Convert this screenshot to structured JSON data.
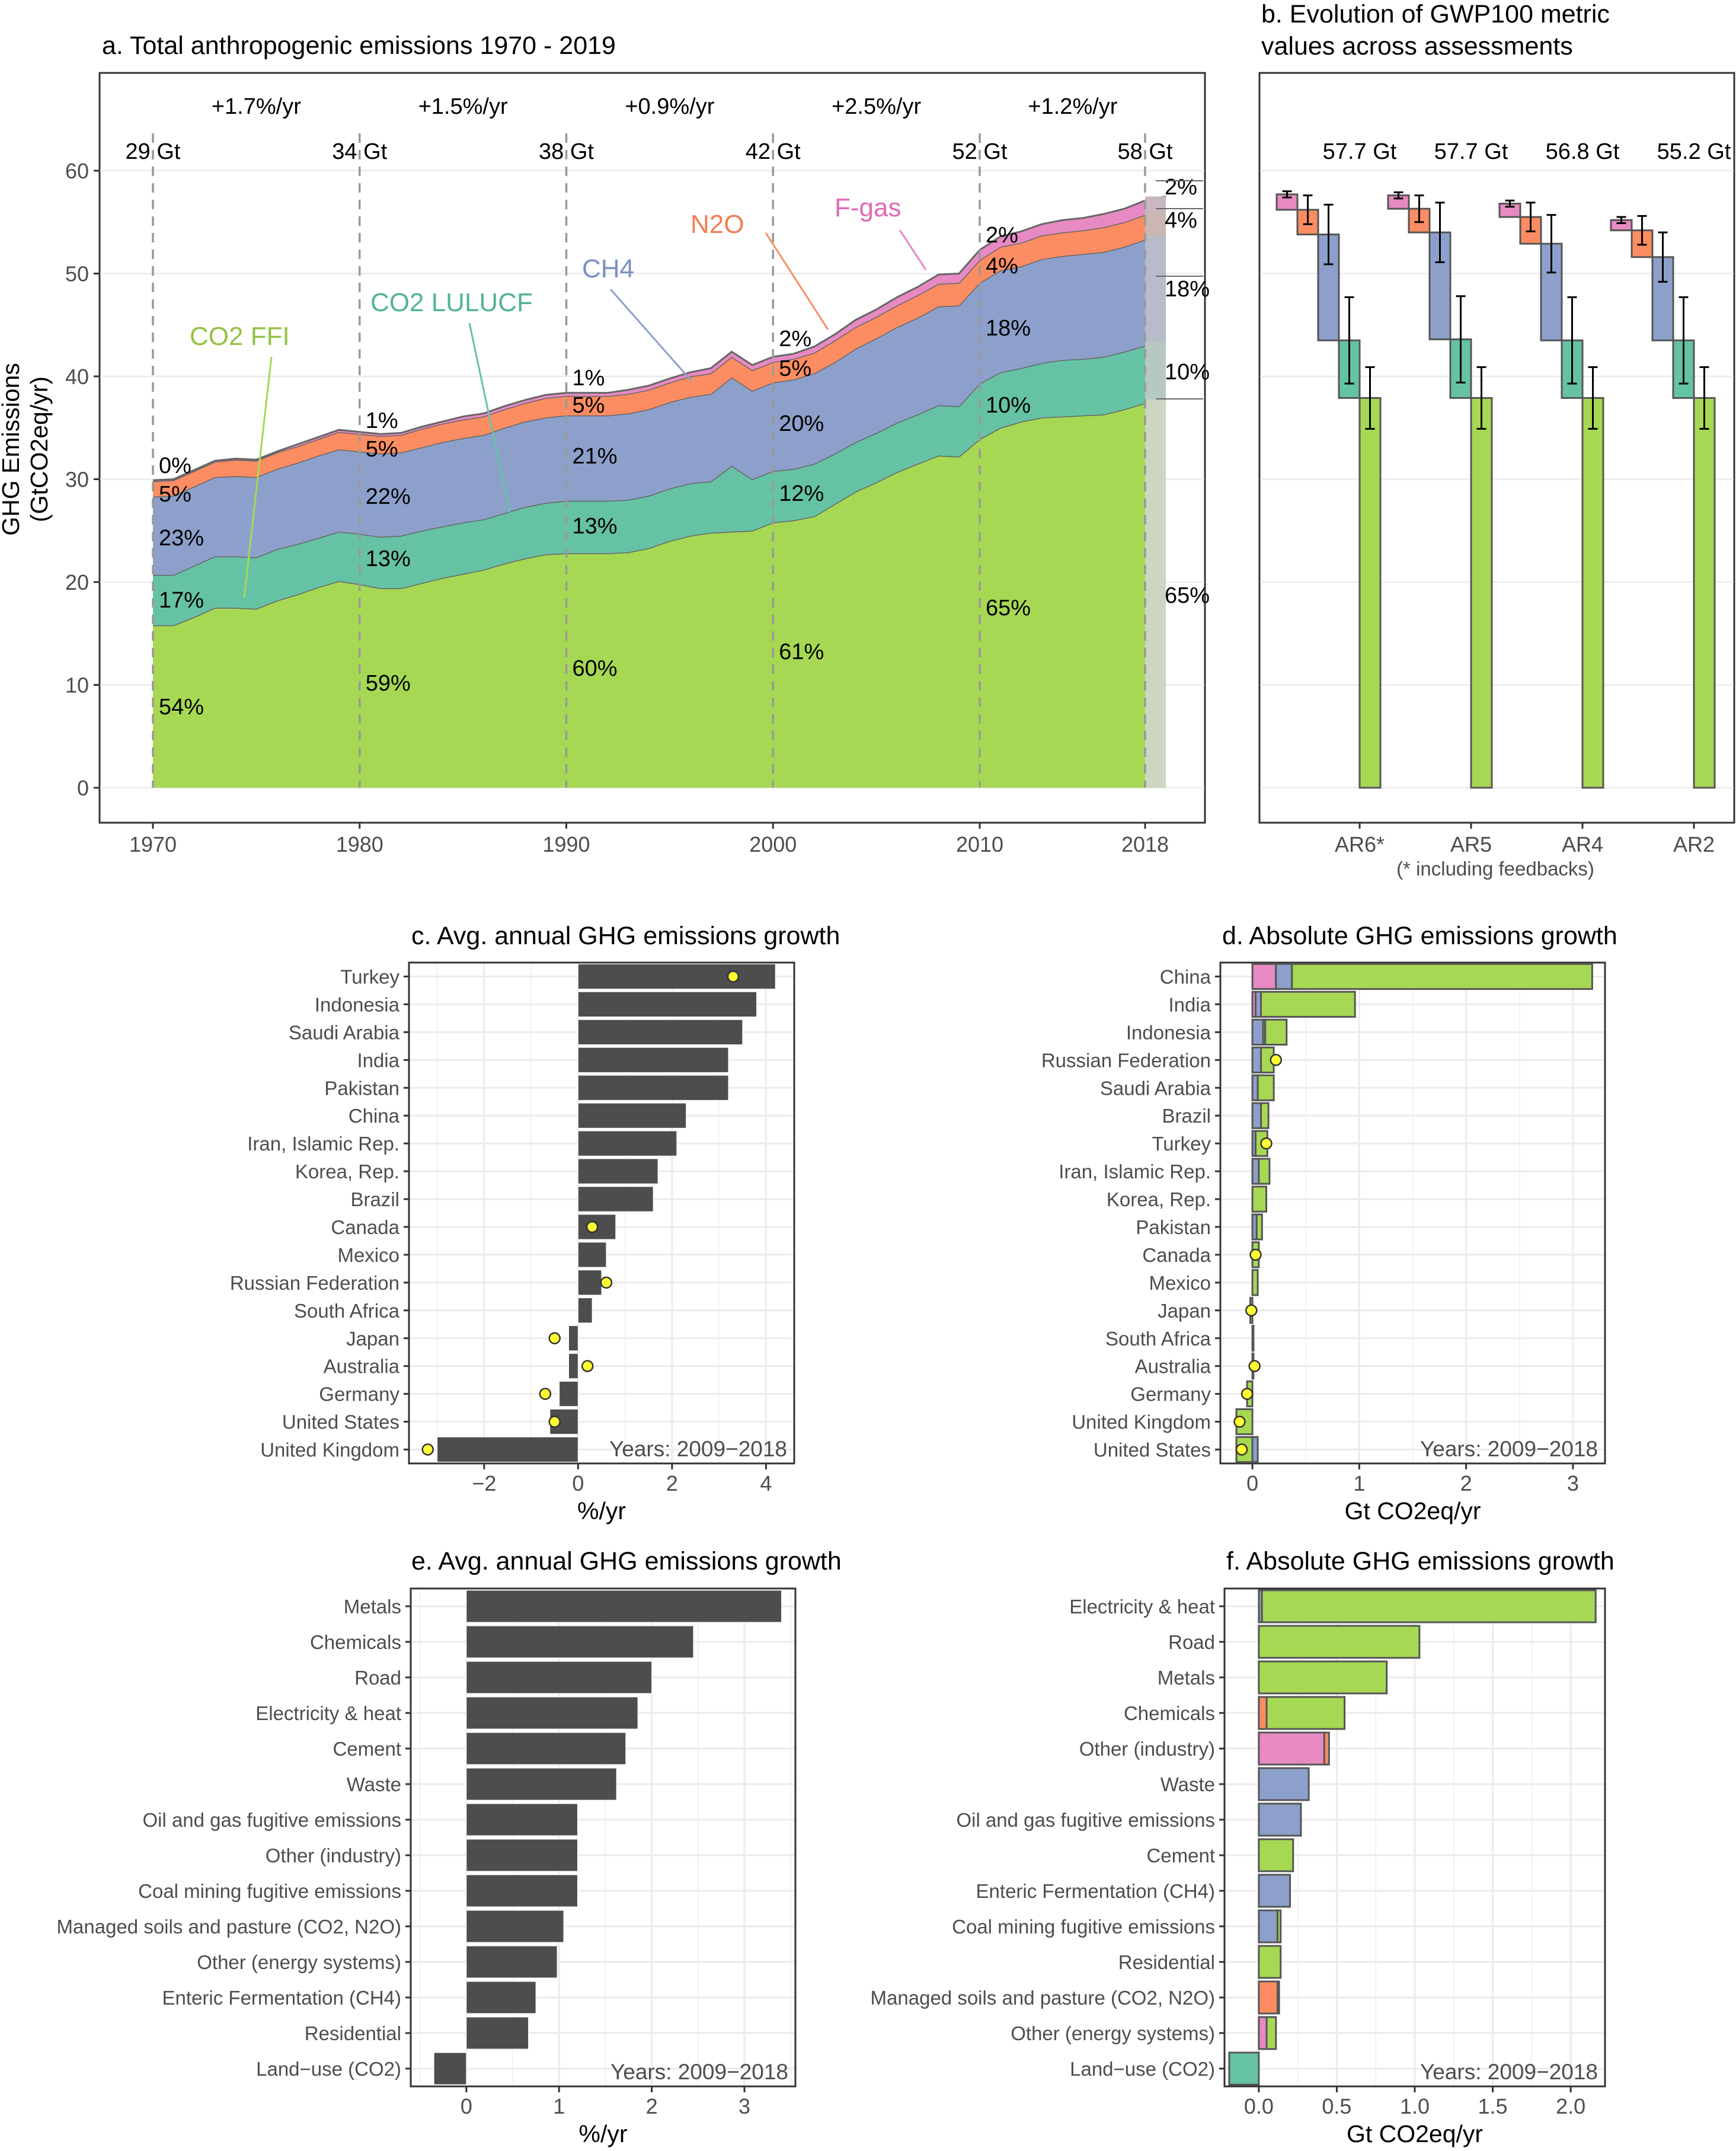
{
  "colors": {
    "co2_ffi": "#a6d854",
    "co2_lulucf": "#66c2a5",
    "ch4": "#8da0cb",
    "n2o": "#fc8d62",
    "fgas": "#e78ac3",
    "bar_dark": "#4d4d4d",
    "dot": "#ffff33",
    "grid": "#ebebeb",
    "dash": "#999999"
  },
  "chart_data": [
    {
      "id": "a",
      "type": "area",
      "title": "a. Total anthropogenic emissions 1970 - 2019",
      "ylabel_line1": "GHG Emissions",
      "ylabel_line2": "(GtCO2eq/yr)",
      "xlim": [
        1970,
        2019
      ],
      "ylim": [
        0,
        60
      ],
      "x_ticks": [
        "1970",
        "1980",
        "1990",
        "2000",
        "2010",
        "2018"
      ],
      "y_ticks": [
        "0",
        "10",
        "20",
        "30",
        "40",
        "50",
        "60"
      ],
      "series": [
        {
          "name": "CO2 FFI",
          "color_key": "co2_ffi",
          "values": [
            15.8,
            15.8,
            16.6,
            17.5,
            17.5,
            17.4,
            18.2,
            18.8,
            19.5,
            20.1,
            19.8,
            19.4,
            19.4,
            19.9,
            20.4,
            20.8,
            21.2,
            21.8,
            22.3,
            22.7,
            22.8,
            22.8,
            22.8,
            22.9,
            23.3,
            24.0,
            24.5,
            24.8,
            24.9,
            25.0,
            25.8,
            26.0,
            26.4,
            27.6,
            28.8,
            29.7,
            30.7,
            31.5,
            32.3,
            32.2,
            33.9,
            35.0,
            35.6,
            36.0,
            36.1,
            36.2,
            36.3,
            36.8,
            37.4,
            37.8
          ]
        },
        {
          "name": "CO2 LULUCF",
          "color_key": "co2_lulucf",
          "values": [
            4.9,
            4.9,
            5.0,
            5.0,
            5.0,
            5.0,
            5.0,
            4.9,
            4.8,
            4.8,
            4.9,
            5.0,
            5.1,
            5.1,
            5.0,
            5.0,
            4.9,
            4.9,
            5.0,
            5.0,
            5.1,
            5.1,
            5.1,
            5.1,
            5.1,
            5.1,
            5.1,
            5.0,
            6.4,
            5.0,
            5.0,
            5.0,
            5.1,
            4.9,
            4.8,
            4.8,
            4.8,
            4.8,
            4.9,
            4.9,
            5.4,
            5.4,
            5.2,
            5.3,
            5.5,
            5.5,
            5.6,
            5.6,
            5.6,
            5.6
          ]
        },
        {
          "name": "CH4",
          "color_key": "ch4",
          "values": [
            7.6,
            7.7,
            7.7,
            7.7,
            7.8,
            7.8,
            7.8,
            7.9,
            8.0,
            8.0,
            8.0,
            8.1,
            8.1,
            8.1,
            8.2,
            8.2,
            8.2,
            8.3,
            8.3,
            8.3,
            8.3,
            8.3,
            8.3,
            8.4,
            8.4,
            8.4,
            8.4,
            8.5,
            8.6,
            8.6,
            8.6,
            8.7,
            8.8,
            8.9,
            9.1,
            9.2,
            9.3,
            9.4,
            9.6,
            9.8,
            9.8,
            9.9,
            9.9,
            10.1,
            10.1,
            10.2,
            10.2,
            10.2,
            10.3,
            10.3
          ]
        },
        {
          "name": "N2O",
          "color_key": "n2o",
          "values": [
            1.5,
            1.5,
            1.5,
            1.5,
            1.6,
            1.6,
            1.6,
            1.6,
            1.6,
            1.7,
            1.7,
            1.7,
            1.7,
            1.8,
            1.8,
            1.8,
            1.8,
            1.8,
            1.8,
            1.9,
            1.9,
            1.9,
            1.9,
            1.9,
            1.9,
            1.9,
            2.0,
            2.0,
            2.0,
            2.0,
            2.0,
            2.0,
            2.0,
            2.1,
            2.1,
            2.1,
            2.1,
            2.2,
            2.2,
            2.2,
            2.2,
            2.3,
            2.3,
            2.3,
            2.3,
            2.3,
            2.4,
            2.4,
            2.4,
            2.4
          ]
        },
        {
          "name": "F-gas",
          "color_key": "fgas",
          "values": [
            0.1,
            0.1,
            0.1,
            0.1,
            0.1,
            0.1,
            0.1,
            0.2,
            0.2,
            0.2,
            0.2,
            0.2,
            0.2,
            0.2,
            0.2,
            0.3,
            0.3,
            0.3,
            0.3,
            0.3,
            0.3,
            0.3,
            0.3,
            0.4,
            0.4,
            0.4,
            0.4,
            0.5,
            0.5,
            0.5,
            0.5,
            0.5,
            0.6,
            0.6,
            0.7,
            0.7,
            0.8,
            0.8,
            0.9,
            0.9,
            1.0,
            1.0,
            1.1,
            1.1,
            1.2,
            1.2,
            1.3,
            1.3,
            1.4,
            1.4
          ]
        }
      ],
      "growth_rates": [
        "+1.7%/yr",
        "+1.5%/yr",
        "+0.9%/yr",
        "+2.5%/yr",
        "+1.2%/yr"
      ],
      "decade_totals": [
        "29 Gt",
        "34 Gt",
        "38 Gt",
        "42 Gt",
        "52 Gt",
        "58 Gt"
      ],
      "decade_shares": [
        {
          "fgas": "0%",
          "n2o": "5%",
          "ch4": "23%",
          "lulucf": "17%",
          "ffi": "54%"
        },
        {
          "fgas": "1%",
          "n2o": "5%",
          "ch4": "22%",
          "lulucf": "13%",
          "ffi": "59%"
        },
        {
          "fgas": "1%",
          "n2o": "5%",
          "ch4": "21%",
          "lulucf": "13%",
          "ffi": "60%"
        },
        {
          "fgas": "2%",
          "n2o": "5%",
          "ch4": "20%",
          "lulucf": "12%",
          "ffi": "61%"
        },
        {
          "fgas": "2%",
          "n2o": "4%",
          "ch4": "18%",
          "lulucf": "10%",
          "ffi": "65%"
        }
      ],
      "end_shares": {
        "fgas": "2%",
        "n2o": "4%",
        "ch4": "18%",
        "lulucf": "10%",
        "ffi": "65%"
      },
      "series_labels": {
        "ffi": "CO2 FFI",
        "lulucf": "CO2 LULUCF",
        "ch4": "CH4",
        "n2o": "N2O",
        "fgas": "F-gas"
      }
    },
    {
      "id": "b",
      "type": "bar",
      "title_line1": "b. Evolution of GWP100 metric",
      "title_line2": "values across assessments",
      "note": "(* including feedbacks)",
      "ylim": [
        0,
        60
      ],
      "groups": [
        {
          "label": "AR6*",
          "total": "57.7 Gt",
          "fgas": 1.5,
          "n2o": 2.4,
          "ch4": 10.3,
          "lulucf": 5.6,
          "ffi": 37.9,
          "err_fgas": 0.3,
          "err_n2o": 1.4,
          "err_ch4": 2.9,
          "err_lulucf": 4.2,
          "err_ffi": 3.0
        },
        {
          "label": "AR5",
          "total": "57.7 Gt",
          "fgas": 1.3,
          "n2o": 2.3,
          "ch4": 10.4,
          "lulucf": 5.7,
          "ffi": 37.9,
          "err_fgas": 0.3,
          "err_n2o": 1.3,
          "err_ch4": 2.9,
          "err_lulucf": 4.2,
          "err_ffi": 3.0
        },
        {
          "label": "AR4",
          "total": "56.8 Gt",
          "fgas": 1.3,
          "n2o": 2.6,
          "ch4": 9.4,
          "lulucf": 5.6,
          "ffi": 37.9,
          "err_fgas": 0.3,
          "err_n2o": 1.4,
          "err_ch4": 2.8,
          "err_lulucf": 4.2,
          "err_ffi": 3.0
        },
        {
          "label": "AR2",
          "total": "55.2 Gt",
          "fgas": 1.0,
          "n2o": 2.6,
          "ch4": 8.1,
          "lulucf": 5.6,
          "ffi": 37.9,
          "err_fgas": 0.3,
          "err_n2o": 1.4,
          "err_ch4": 2.4,
          "err_lulucf": 4.2,
          "err_ffi": 3.0
        }
      ]
    },
    {
      "id": "c",
      "type": "bar",
      "title": "c. Avg. annual GHG emissions growth",
      "xlabel": "%/yr",
      "xlim": [
        -3.6,
        4.6
      ],
      "x_ticks": [
        -2,
        0,
        2,
        4
      ],
      "x_tick_labels": [
        "−2",
        "0",
        "2",
        "4"
      ],
      "note": "Years: 2009−2018",
      "categories": [
        "Turkey",
        "Indonesia",
        "Saudi Arabia",
        "India",
        "Pakistan",
        "China",
        "Iran, Islamic Rep.",
        "Korea, Rep.",
        "Brazil",
        "Canada",
        "Mexico",
        "Russian Federation",
        "South Africa",
        "Japan",
        "Australia",
        "Germany",
        "United States",
        "United Kingdom"
      ],
      "values": [
        4.2,
        3.8,
        3.5,
        3.2,
        3.2,
        2.3,
        2.1,
        1.7,
        1.6,
        0.8,
        0.6,
        0.5,
        0.3,
        -0.2,
        -0.2,
        -0.4,
        -0.6,
        -3.0
      ],
      "dots": [
        3.3,
        null,
        null,
        null,
        null,
        null,
        null,
        null,
        null,
        0.3,
        null,
        0.6,
        null,
        -0.5,
        0.2,
        -0.7,
        -0.5,
        -3.2
      ]
    },
    {
      "id": "d",
      "type": "bar",
      "title": "d. Absolute GHG emissions growth",
      "xlabel": "Gt CO2eq/yr",
      "xlim": [
        -0.3,
        3.3
      ],
      "x_ticks": [
        0,
        1,
        2,
        3
      ],
      "x_tick_labels": [
        "0",
        "1",
        "2",
        "3"
      ],
      "note": "Years: 2009−2018",
      "categories": [
        "China",
        "India",
        "Indonesia",
        "Russian Federation",
        "Saudi Arabia",
        "Brazil",
        "Turkey",
        "Iran, Islamic Rep.",
        "Korea, Rep.",
        "Pakistan",
        "Canada",
        "Mexico",
        "Japan",
        "South Africa",
        "Australia",
        "Germany",
        "United Kingdom",
        "United States"
      ],
      "stacks": [
        [
          [
            "fgas",
            0.22
          ],
          [
            "ch4",
            0.15
          ],
          [
            "ffi",
            2.81
          ]
        ],
        [
          [
            "fgas",
            0.03
          ],
          [
            "ch4",
            0.05
          ],
          [
            "ffi",
            0.88
          ]
        ],
        [
          [
            "ch4",
            0.1
          ],
          [
            "lulucf",
            0.02
          ],
          [
            "ffi",
            0.2
          ]
        ],
        [
          [
            "ch4",
            0.08
          ],
          [
            "ffi",
            0.12
          ]
        ],
        [
          [
            "ch4",
            0.05
          ],
          [
            "ffi",
            0.15
          ]
        ],
        [
          [
            "ch4",
            0.08
          ],
          [
            "ffi",
            0.07
          ]
        ],
        [
          [
            "ch4",
            0.03
          ],
          [
            "ffi",
            0.11
          ]
        ],
        [
          [
            "ch4",
            0.06
          ],
          [
            "ffi",
            0.1
          ]
        ],
        [
          [
            "ffi",
            0.13
          ]
        ],
        [
          [
            "ch4",
            0.04
          ],
          [
            "ffi",
            0.05
          ]
        ],
        [
          [
            "ffi",
            0.06
          ]
        ],
        [
          [
            "ffi",
            0.05
          ]
        ],
        [
          [
            "ffi",
            -0.02
          ]
        ],
        [
          [
            "ffi",
            0.01
          ]
        ],
        [
          [
            "ffi",
            0.01
          ]
        ],
        [
          [
            "ffi",
            -0.05
          ]
        ],
        [
          [
            "ffi",
            -0.15
          ]
        ],
        [
          [
            "ffi",
            -0.15
          ],
          [
            "ch4",
            0.05
          ]
        ]
      ],
      "dots": [
        null,
        null,
        null,
        0.22,
        null,
        null,
        0.13,
        null,
        null,
        null,
        0.03,
        null,
        -0.01,
        null,
        0.02,
        -0.05,
        -0.12,
        -0.1
      ]
    },
    {
      "id": "e",
      "type": "bar",
      "title": "e. Avg. annual GHG emissions growth",
      "xlabel": "%/yr",
      "xlim": [
        -0.6,
        3.55
      ],
      "x_ticks": [
        0,
        1,
        2,
        3
      ],
      "x_tick_labels": [
        "0",
        "1",
        "2",
        "3"
      ],
      "note": "Years: 2009−2018",
      "categories": [
        "Metals",
        "Chemicals",
        "Road",
        "Electricity & heat",
        "Cement",
        "Waste",
        "Oil and gas fugitive emissions",
        "Other (industry)",
        "Coal mining fugitive emissions",
        "Managed soils and pasture (CO2, N2O)",
        "Other (energy systems)",
        "Enteric Fermentation (CH4)",
        "Residential",
        "Land−use (CO2)"
      ],
      "values": [
        3.4,
        2.45,
        2.0,
        1.85,
        1.72,
        1.62,
        1.2,
        1.2,
        1.2,
        1.05,
        0.98,
        0.75,
        0.67,
        -0.35
      ]
    },
    {
      "id": "f",
      "type": "bar",
      "title": "f. Absolute GHG emissions growth",
      "xlabel": "Gt CO2eq/yr",
      "xlim": [
        -0.22,
        2.22
      ],
      "x_ticks": [
        0,
        0.5,
        1.0,
        1.5,
        2.0
      ],
      "x_tick_labels": [
        "0.0",
        "0.5",
        "1.0",
        "1.5",
        "2.0"
      ],
      "note": "Years: 2009−2018",
      "categories": [
        "Electricity & heat",
        "Road",
        "Metals",
        "Chemicals",
        "Other (industry)",
        "Waste",
        "Oil and gas fugitive emissions",
        "Cement",
        "Enteric Fermentation (CH4)",
        "Coal mining fugitive emissions",
        "Residential",
        "Managed soils and pasture (CO2, N2O)",
        "Other (energy systems)",
        "Land−use (CO2)"
      ],
      "stacks": [
        [
          [
            "ch4",
            0.02
          ],
          [
            "ffi",
            2.14
          ]
        ],
        [
          [
            "ffi",
            1.03
          ]
        ],
        [
          [
            "ffi",
            0.82
          ]
        ],
        [
          [
            "n2o",
            0.05
          ],
          [
            "ffi",
            0.5
          ]
        ],
        [
          [
            "fgas",
            0.42
          ],
          [
            "n2o",
            0.03
          ]
        ],
        [
          [
            "ch4",
            0.32
          ]
        ],
        [
          [
            "ch4",
            0.27
          ]
        ],
        [
          [
            "ffi",
            0.22
          ]
        ],
        [
          [
            "ch4",
            0.2
          ]
        ],
        [
          [
            "ch4",
            0.12
          ],
          [
            "ffi",
            0.02
          ]
        ],
        [
          [
            "ffi",
            0.14
          ]
        ],
        [
          [
            "n2o",
            0.12
          ],
          [
            "ffi",
            0.01
          ]
        ],
        [
          [
            "fgas",
            0.05
          ],
          [
            "ffi",
            0.06
          ]
        ],
        [
          [
            "lulucf",
            -0.19
          ]
        ]
      ]
    }
  ]
}
